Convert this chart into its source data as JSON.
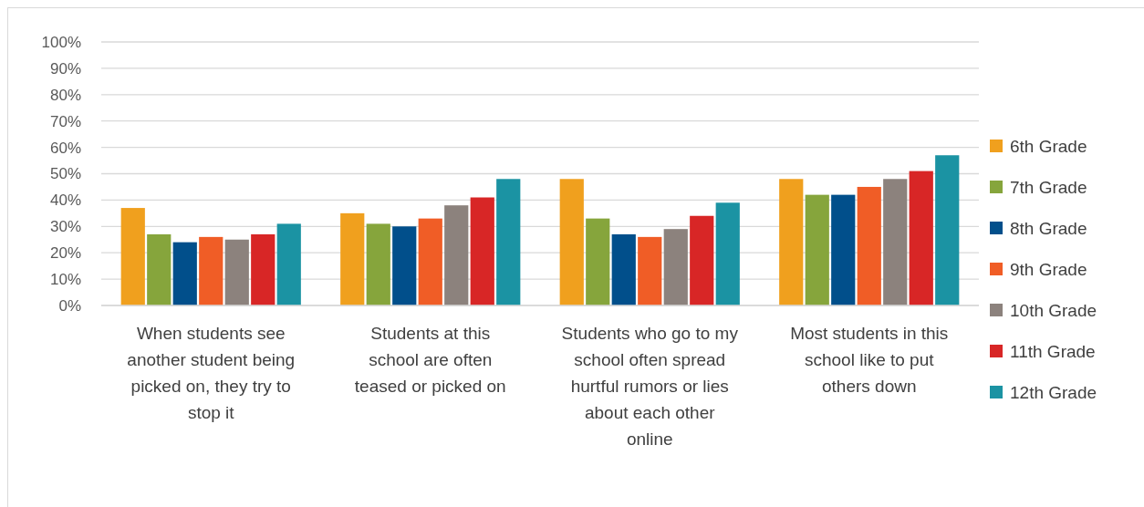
{
  "chart_data": {
    "type": "bar",
    "categories": [
      "When students see another student being picked on, they try to stop it",
      "Students at this school are often teased or picked on",
      "Students who go to my school often spread hurtful rumors or lies about each other online",
      "Most students in this school like to put others down"
    ],
    "series": [
      {
        "name": "6th Grade",
        "color": "#f0a01e",
        "values": [
          37,
          35,
          48,
          48
        ]
      },
      {
        "name": "7th Grade",
        "color": "#86a53c",
        "values": [
          27,
          31,
          33,
          42
        ]
      },
      {
        "name": "8th Grade",
        "color": "#014f8b",
        "values": [
          24,
          30,
          27,
          42
        ]
      },
      {
        "name": "9th Grade",
        "color": "#f05d26",
        "values": [
          26,
          33,
          26,
          45
        ]
      },
      {
        "name": "10th Grade",
        "color": "#8c827d",
        "values": [
          25,
          38,
          29,
          48
        ]
      },
      {
        "name": "11th Grade",
        "color": "#d82626",
        "values": [
          27,
          41,
          34,
          51
        ]
      },
      {
        "name": "12th Grade",
        "color": "#1b93a3",
        "values": [
          31,
          48,
          39,
          57
        ]
      }
    ],
    "ylim": [
      0,
      100
    ],
    "yticks": [
      {
        "value": 0,
        "label": "0%"
      },
      {
        "value": 10,
        "label": "10%"
      },
      {
        "value": 20,
        "label": "20%"
      },
      {
        "value": 30,
        "label": "30%"
      },
      {
        "value": 40,
        "label": "40%"
      },
      {
        "value": 50,
        "label": "50%"
      },
      {
        "value": 60,
        "label": "60%"
      },
      {
        "value": 70,
        "label": "70%"
      },
      {
        "value": 80,
        "label": "80%"
      },
      {
        "value": 90,
        "label": "90%"
      },
      {
        "value": 100,
        "label": "100%"
      }
    ],
    "grid": "y",
    "legend": "right"
  }
}
